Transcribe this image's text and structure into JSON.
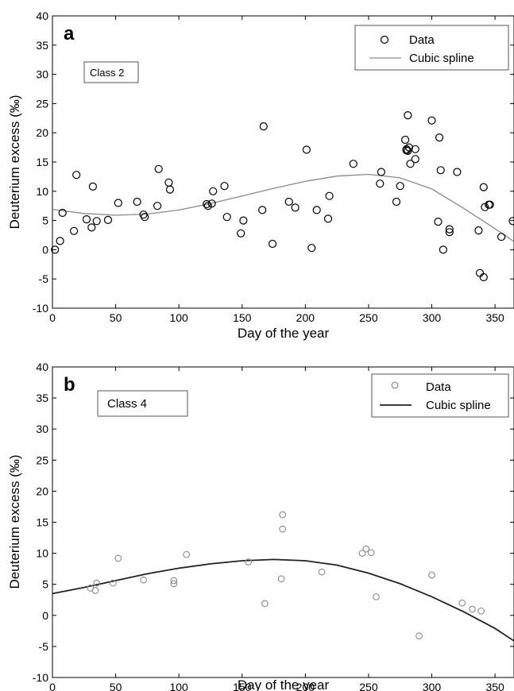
{
  "chart_data": [
    {
      "type": "scatter",
      "panel": "a",
      "class_label": "Class 2",
      "xlabel": "Day of the year",
      "ylabel": "Deuterium excess (‰)",
      "xlim": [
        0,
        365
      ],
      "ylim": [
        -10,
        40
      ],
      "xticks": [
        "0",
        "50",
        "100",
        "150",
        "200",
        "250",
        "300",
        "350"
      ],
      "yticks": [
        "-10",
        "-5",
        "0",
        "5",
        "10",
        "15",
        "20",
        "25",
        "30",
        "35",
        "40"
      ],
      "legend": {
        "position": "top-right",
        "entries": [
          "Data",
          "Cubic spline"
        ]
      },
      "series": [
        {
          "name": "Data",
          "kind": "scatter",
          "color": "#000000",
          "points": [
            [
              2,
              0
            ],
            [
              6,
              1.5
            ],
            [
              8,
              6.3
            ],
            [
              17,
              3.2
            ],
            [
              19,
              12.8
            ],
            [
              27,
              5.2
            ],
            [
              31,
              3.8
            ],
            [
              32,
              10.8
            ],
            [
              35,
              4.9
            ],
            [
              44,
              5.1
            ],
            [
              52,
              8
            ],
            [
              67,
              8.2
            ],
            [
              72,
              6
            ],
            [
              73,
              5.6
            ],
            [
              83,
              7.5
            ],
            [
              84,
              13.8
            ],
            [
              92,
              11.5
            ],
            [
              93,
              10.3
            ],
            [
              122,
              7.8
            ],
            [
              123,
              7.5
            ],
            [
              126,
              7.9
            ],
            [
              127,
              10
            ],
            [
              136,
              10.9
            ],
            [
              138,
              5.6
            ],
            [
              149,
              2.8
            ],
            [
              151,
              5
            ],
            [
              166,
              6.8
            ],
            [
              167,
              21.1
            ],
            [
              174,
              1
            ],
            [
              187,
              8.2
            ],
            [
              192,
              7.2
            ],
            [
              201,
              17.1
            ],
            [
              205,
              0.3
            ],
            [
              209,
              6.8
            ],
            [
              218,
              5.3
            ],
            [
              219,
              9.2
            ],
            [
              238,
              14.7
            ],
            [
              259,
              11.3
            ],
            [
              260,
              13.3
            ],
            [
              272,
              8.2
            ],
            [
              275,
              10.9
            ],
            [
              279,
              18.8
            ],
            [
              280,
              17.2
            ],
            [
              280,
              17
            ],
            [
              281,
              16.9
            ],
            [
              281,
              23
            ],
            [
              282,
              17.5
            ],
            [
              283,
              14.7
            ],
            [
              287,
              17.2
            ],
            [
              287,
              15.5
            ],
            [
              300,
              22.1
            ],
            [
              305,
              4.8
            ],
            [
              306,
              19.2
            ],
            [
              307,
              13.6
            ],
            [
              309,
              0
            ],
            [
              314,
              3.5
            ],
            [
              314,
              3
            ],
            [
              320,
              13.3
            ],
            [
              337,
              3.3
            ],
            [
              338,
              -4
            ],
            [
              341,
              -4.7
            ],
            [
              341,
              10.7
            ],
            [
              342,
              7.3
            ],
            [
              345,
              7.7
            ],
            [
              346,
              7.7
            ],
            [
              355,
              2.2
            ],
            [
              364,
              4.9
            ]
          ]
        },
        {
          "name": "Cubic spline",
          "kind": "line",
          "color": "#8a8a8a",
          "points": [
            [
              0,
              6.9
            ],
            [
              25,
              6.2
            ],
            [
              50,
              5.9
            ],
            [
              75,
              6.1
            ],
            [
              100,
              6.8
            ],
            [
              125,
              7.9
            ],
            [
              150,
              9.2
            ],
            [
              175,
              10.5
            ],
            [
              200,
              11.7
            ],
            [
              225,
              12.6
            ],
            [
              250,
              12.9
            ],
            [
              275,
              12.3
            ],
            [
              300,
              10.4
            ],
            [
              325,
              7.1
            ],
            [
              350,
              3.6
            ],
            [
              365,
              1.4
            ]
          ]
        }
      ]
    },
    {
      "type": "scatter",
      "panel": "b",
      "class_label": "Class 4",
      "xlabel": "Day of the year",
      "ylabel": "Deuterium excess (‰)",
      "xlim": [
        0,
        365
      ],
      "ylim": [
        -10,
        40
      ],
      "xticks": [
        "0",
        "50",
        "100",
        "150",
        "200",
        "250",
        "300",
        "350"
      ],
      "yticks": [
        "-10",
        "-5",
        "0",
        "5",
        "10",
        "15",
        "20",
        "25",
        "30",
        "35",
        "40"
      ],
      "legend": {
        "position": "top-right",
        "entries": [
          "Data",
          "Cubic spline"
        ]
      },
      "series": [
        {
          "name": "Data",
          "kind": "scatter",
          "color": "#8a8a8a",
          "points": [
            [
              30,
              4.4
            ],
            [
              34,
              4
            ],
            [
              35,
              5.2
            ],
            [
              48,
              5.2
            ],
            [
              52,
              9.2
            ],
            [
              72,
              5.7
            ],
            [
              96,
              5.6
            ],
            [
              96,
              5.1
            ],
            [
              106,
              9.8
            ],
            [
              155,
              8.6
            ],
            [
              168,
              1.9
            ],
            [
              181,
              5.9
            ],
            [
              182,
              16.2
            ],
            [
              182,
              13.9
            ],
            [
              213,
              7
            ],
            [
              245,
              10
            ],
            [
              248,
              10.7
            ],
            [
              252,
              10.1
            ],
            [
              256,
              3
            ],
            [
              290,
              -3.3
            ],
            [
              300,
              6.5
            ],
            [
              324,
              2
            ],
            [
              332,
              1
            ],
            [
              339,
              0.7
            ]
          ]
        },
        {
          "name": "Cubic spline",
          "kind": "line",
          "color": "#222222",
          "points": [
            [
              0,
              3.5
            ],
            [
              25,
              4.5
            ],
            [
              50,
              5.6
            ],
            [
              75,
              6.7
            ],
            [
              100,
              7.6
            ],
            [
              125,
              8.3
            ],
            [
              150,
              8.8
            ],
            [
              175,
              9
            ],
            [
              200,
              8.8
            ],
            [
              225,
              8.1
            ],
            [
              250,
              6.8
            ],
            [
              275,
              5.1
            ],
            [
              300,
              3
            ],
            [
              325,
              0.6
            ],
            [
              350,
              -2.1
            ],
            [
              365,
              -4.1
            ]
          ]
        }
      ]
    }
  ]
}
